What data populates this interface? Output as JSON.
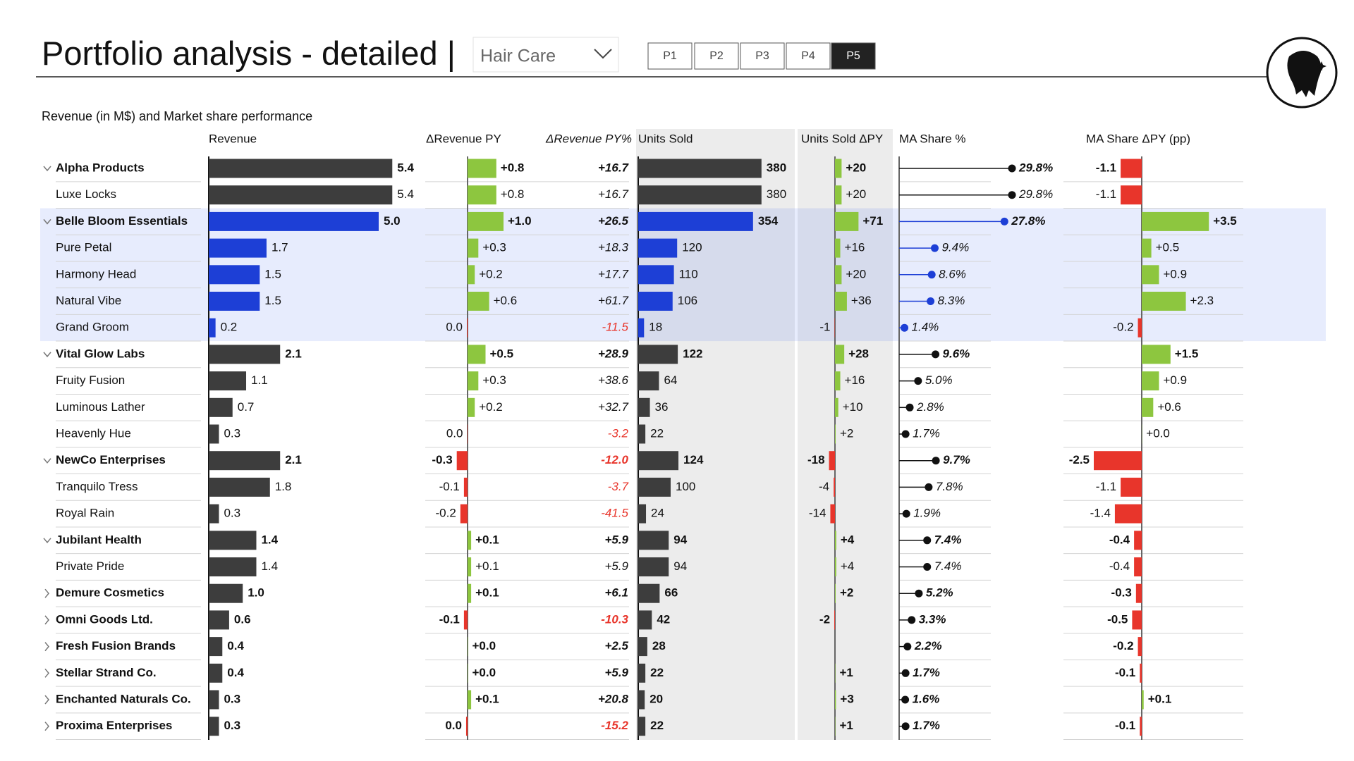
{
  "header": {
    "title": "Portfolio analysis - detailed |",
    "dropdown": "Hair Care",
    "pages": [
      "P1",
      "P2",
      "P3",
      "P4",
      "P5"
    ],
    "active_page": 4
  },
  "subtitle": "Revenue (in M$) and Market share performance",
  "table": {
    "rows": [
      "Alpha Products",
      "Luxe Locks",
      "Belle Bloom Essentials",
      "Pure Petal",
      "Harmony Head",
      "Natural Vibe",
      "Grand Groom",
      "Vital Glow Labs",
      "Fruity Fusion",
      "Luminous Lather",
      "Heavenly Hue",
      "NewCo Enterprises",
      "Tranquilo Tress",
      "Royal Rain",
      "Jubilant Health",
      "Private Pride",
      "Demure Cosmetics",
      "Omni Goods Ltd.",
      "Fresh Fusion Brands",
      "Stellar Strand Co.",
      "Enchanted Naturals Co.",
      "Proxima Enterprises"
    ],
    "row_kind": [
      "open",
      "child",
      "open",
      "child",
      "child",
      "child",
      "child",
      "open",
      "child",
      "child",
      "child",
      "open",
      "child",
      "child",
      "open",
      "child",
      "closed",
      "closed",
      "closed",
      "closed",
      "closed",
      "closed"
    ],
    "highlight": [
      false,
      false,
      true,
      true,
      true,
      true,
      true,
      false,
      false,
      false,
      false,
      false,
      false,
      false,
      false,
      false,
      false,
      false,
      false,
      false,
      false,
      false
    ],
    "colors": {
      "bar": "#3d3d3d",
      "highlight": "#1d3fd6",
      "positive": "#8dc63f",
      "negative": "#e8352b",
      "dot": "#111111"
    },
    "columns": [
      {
        "name": "Revenue",
        "kind": "bar",
        "values": [
          5.4,
          5.4,
          5.0,
          1.7,
          1.5,
          1.5,
          0.2,
          2.1,
          1.1,
          0.7,
          0.3,
          2.1,
          1.8,
          0.3,
          1.4,
          1.4,
          1.0,
          0.6,
          0.4,
          0.4,
          0.3,
          0.3
        ],
        "value_labels": [
          "5.4",
          "5.4",
          "5.0",
          "1.7",
          "1.5",
          "1.5",
          "0.2",
          "2.1",
          "1.1",
          "0.7",
          "0.3",
          "2.1",
          "1.8",
          "0.3",
          "1.4",
          "1.4",
          "1.0",
          "0.6",
          "0.4",
          "0.4",
          "0.3",
          "0.3"
        ]
      },
      {
        "name": "ΔRevenue PY",
        "kind": "delta",
        "values": [
          0.8,
          0.8,
          1.0,
          0.3,
          0.2,
          0.6,
          -0.02,
          0.5,
          0.3,
          0.2,
          -0.01,
          -0.3,
          -0.1,
          -0.2,
          0.1,
          0.1,
          0.1,
          -0.1,
          0.01,
          0.01,
          0.1,
          -0.04
        ],
        "value_labels": [
          "+0.8",
          "+0.8",
          "+1.0",
          "+0.3",
          "+0.2",
          "+0.6",
          "0.0",
          "+0.5",
          "+0.3",
          "+0.2",
          "0.0",
          "-0.3",
          "-0.1",
          "-0.2",
          "+0.1",
          "+0.1",
          "+0.1",
          "-0.1",
          "+0.0",
          "+0.0",
          "+0.1",
          "0.0"
        ]
      },
      {
        "name": "ΔRevenue PY%",
        "kind": "text",
        "values": [
          16.7,
          16.7,
          26.5,
          18.3,
          17.7,
          61.7,
          -11.5,
          28.9,
          38.6,
          32.7,
          -3.2,
          -12.0,
          -3.7,
          -41.5,
          5.9,
          5.9,
          6.1,
          -10.3,
          2.5,
          5.9,
          20.8,
          -15.2
        ],
        "value_labels": [
          "+16.7",
          "+16.7",
          "+26.5",
          "+18.3",
          "+17.7",
          "+61.7",
          "-11.5",
          "+28.9",
          "+38.6",
          "+32.7",
          "-3.2",
          "-12.0",
          "-3.7",
          "-41.5",
          "+5.9",
          "+5.9",
          "+6.1",
          "-10.3",
          "+2.5",
          "+5.9",
          "+20.8",
          "-15.2"
        ]
      },
      {
        "name": "Units Sold",
        "kind": "bar",
        "values": [
          380,
          380,
          354,
          120,
          110,
          106,
          18,
          122,
          64,
          36,
          22,
          124,
          100,
          24,
          94,
          94,
          66,
          42,
          28,
          22,
          20,
          22
        ]
      },
      {
        "name": "Units Sold ΔPY",
        "kind": "delta",
        "values": [
          20,
          20,
          71,
          16,
          20,
          36,
          -1,
          28,
          16,
          10,
          2,
          -18,
          -4,
          -14,
          4,
          4,
          2,
          -2,
          null,
          1,
          3,
          1
        ],
        "value_labels": [
          "+20",
          "+20",
          "+71",
          "+16",
          "+20",
          "+36",
          "-1",
          "+28",
          "+16",
          "+10",
          "+2",
          "-18",
          "-4",
          "-14",
          "+4",
          "+4",
          "+2",
          "-2",
          null,
          "+1",
          "+3",
          "+1"
        ]
      },
      {
        "name": "MA Share %",
        "kind": "dot",
        "values": [
          29.8,
          29.8,
          27.8,
          9.4,
          8.6,
          8.3,
          1.4,
          9.6,
          5.0,
          2.8,
          1.7,
          9.7,
          7.8,
          1.9,
          7.4,
          7.4,
          5.2,
          3.3,
          2.2,
          1.7,
          1.6,
          1.7
        ],
        "value_labels": [
          "29.8%",
          "29.8%",
          "27.8%",
          "9.4%",
          "8.6%",
          "8.3%",
          "1.4%",
          "9.6%",
          "5.0%",
          "2.8%",
          "1.7%",
          "9.7%",
          "7.8%",
          "1.9%",
          "7.4%",
          "7.4%",
          "5.2%",
          "3.3%",
          "2.2%",
          "1.7%",
          "1.6%",
          "1.7%"
        ]
      },
      {
        "name": "MA Share ΔPY (pp)",
        "kind": "delta",
        "values": [
          -1.1,
          -1.1,
          3.5,
          0.5,
          0.9,
          2.3,
          -0.2,
          1.5,
          0.9,
          0.6,
          0.01,
          -2.5,
          -1.1,
          -1.4,
          -0.4,
          -0.4,
          -0.3,
          -0.5,
          -0.2,
          -0.1,
          0.1,
          -0.1
        ],
        "value_labels": [
          "-1.1",
          "-1.1",
          "+3.5",
          "+0.5",
          "+0.9",
          "+2.3",
          "-0.2",
          "+1.5",
          "+0.9",
          "+0.6",
          "+0.0",
          "-2.5",
          "-1.1",
          "-1.4",
          "-0.4",
          "-0.4",
          "-0.3",
          "-0.5",
          "-0.2",
          "-0.1",
          "+0.1",
          "-0.1"
        ]
      }
    ]
  }
}
